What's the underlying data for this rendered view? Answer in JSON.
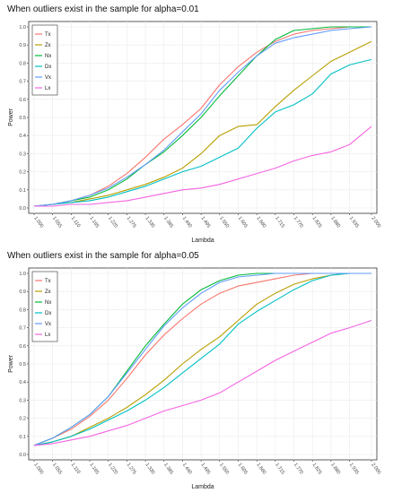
{
  "chart_data": [
    {
      "type": "line",
      "title": "When outliers exist in the sample for alpha=0.01",
      "xlabel": "Lambda",
      "ylabel": "Power",
      "x_ticks": [
        "1.000",
        "1.055",
        "1.110",
        "1.165",
        "1.220",
        "1.275",
        "1.330",
        "1.385",
        "1.440",
        "1.495",
        "1.550",
        "1.605",
        "1.660",
        "1.715",
        "1.770",
        "1.825",
        "1.880",
        "1.935",
        "2.000"
      ],
      "y_ticks": [
        "0.0",
        "0.1",
        "0.2",
        "0.3",
        "0.4",
        "0.5",
        "0.6",
        "0.7",
        "0.8",
        "0.9",
        "1.0"
      ],
      "xlim": [
        1.0,
        2.0
      ],
      "ylim": [
        0.0,
        1.0
      ],
      "grid": true,
      "legend_position": "top-left",
      "x": [
        1.0,
        1.055,
        1.11,
        1.165,
        1.22,
        1.275,
        1.33,
        1.385,
        1.44,
        1.495,
        1.55,
        1.605,
        1.66,
        1.715,
        1.77,
        1.825,
        1.88,
        1.935,
        2.0
      ],
      "series": [
        {
          "name": "Tx",
          "color": "#F8766D",
          "values": [
            0.01,
            0.02,
            0.04,
            0.07,
            0.12,
            0.19,
            0.28,
            0.38,
            0.46,
            0.55,
            0.68,
            0.78,
            0.86,
            0.92,
            0.96,
            0.98,
            0.99,
            1.0,
            1.0
          ]
        },
        {
          "name": "Zx",
          "color": "#B79F00",
          "values": [
            0.01,
            0.02,
            0.03,
            0.05,
            0.07,
            0.1,
            0.13,
            0.17,
            0.22,
            0.3,
            0.4,
            0.45,
            0.46,
            0.56,
            0.65,
            0.73,
            0.81,
            0.86,
            0.92
          ]
        },
        {
          "name": "Nx",
          "color": "#00BA38",
          "values": [
            0.01,
            0.02,
            0.04,
            0.06,
            0.1,
            0.16,
            0.24,
            0.31,
            0.4,
            0.5,
            0.62,
            0.73,
            0.84,
            0.93,
            0.98,
            0.99,
            1.0,
            1.0,
            1.0
          ]
        },
        {
          "name": "Dx",
          "color": "#00BFC4",
          "values": [
            0.01,
            0.02,
            0.03,
            0.04,
            0.06,
            0.09,
            0.12,
            0.16,
            0.2,
            0.23,
            0.28,
            0.33,
            0.44,
            0.53,
            0.57,
            0.63,
            0.74,
            0.79,
            0.82
          ]
        },
        {
          "name": "Vx",
          "color": "#619CFF",
          "values": [
            0.01,
            0.02,
            0.04,
            0.07,
            0.11,
            0.17,
            0.24,
            0.32,
            0.42,
            0.52,
            0.65,
            0.75,
            0.84,
            0.91,
            0.94,
            0.96,
            0.98,
            0.99,
            1.0
          ]
        },
        {
          "name": "Lx",
          "color": "#F564E3",
          "values": [
            0.01,
            0.01,
            0.02,
            0.02,
            0.03,
            0.04,
            0.06,
            0.08,
            0.1,
            0.11,
            0.13,
            0.16,
            0.19,
            0.22,
            0.26,
            0.29,
            0.31,
            0.35,
            0.45
          ]
        }
      ]
    },
    {
      "type": "line",
      "title": "When outliers exist in the sample for alpha=0.05",
      "xlabel": "Lambda",
      "ylabel": "Power",
      "x_ticks": [
        "1.000",
        "1.055",
        "1.110",
        "1.165",
        "1.220",
        "1.275",
        "1.330",
        "1.385",
        "1.440",
        "1.495",
        "1.550",
        "1.605",
        "1.660",
        "1.715",
        "1.770",
        "1.825",
        "1.880",
        "1.935",
        "2.000"
      ],
      "y_ticks": [
        "0.0",
        "0.1",
        "0.2",
        "0.3",
        "0.4",
        "0.5",
        "0.6",
        "0.7",
        "0.8",
        "0.9",
        "1.0"
      ],
      "xlim": [
        1.0,
        2.0
      ],
      "ylim": [
        0.0,
        1.0
      ],
      "grid": true,
      "legend_position": "top-left",
      "x": [
        1.0,
        1.055,
        1.11,
        1.165,
        1.22,
        1.275,
        1.33,
        1.385,
        1.44,
        1.495,
        1.55,
        1.605,
        1.66,
        1.715,
        1.77,
        1.825,
        1.88,
        1.935,
        2.0
      ],
      "series": [
        {
          "name": "Tx",
          "color": "#F8766D",
          "values": [
            0.05,
            0.09,
            0.14,
            0.21,
            0.3,
            0.42,
            0.55,
            0.66,
            0.75,
            0.83,
            0.89,
            0.93,
            0.95,
            0.97,
            0.99,
            1.0,
            1.0,
            1.0,
            1.0
          ]
        },
        {
          "name": "Zx",
          "color": "#B79F00",
          "values": [
            0.05,
            0.07,
            0.1,
            0.15,
            0.2,
            0.26,
            0.33,
            0.41,
            0.5,
            0.58,
            0.65,
            0.74,
            0.83,
            0.89,
            0.94,
            0.97,
            0.99,
            1.0,
            1.0
          ]
        },
        {
          "name": "Nx",
          "color": "#00BA38",
          "values": [
            0.05,
            0.09,
            0.15,
            0.22,
            0.32,
            0.46,
            0.6,
            0.72,
            0.83,
            0.91,
            0.96,
            0.99,
            1.0,
            1.0,
            1.0,
            1.0,
            1.0,
            1.0,
            1.0
          ]
        },
        {
          "name": "Dx",
          "color": "#00BFC4",
          "values": [
            0.05,
            0.07,
            0.1,
            0.14,
            0.19,
            0.24,
            0.3,
            0.37,
            0.45,
            0.53,
            0.61,
            0.72,
            0.79,
            0.85,
            0.91,
            0.96,
            0.99,
            1.0,
            1.0
          ]
        },
        {
          "name": "Vx",
          "color": "#619CFF",
          "values": [
            0.05,
            0.09,
            0.15,
            0.22,
            0.32,
            0.45,
            0.58,
            0.71,
            0.81,
            0.89,
            0.95,
            0.98,
            0.99,
            1.0,
            1.0,
            1.0,
            1.0,
            1.0,
            1.0
          ]
        },
        {
          "name": "Lx",
          "color": "#F564E3",
          "values": [
            0.05,
            0.06,
            0.08,
            0.1,
            0.13,
            0.16,
            0.2,
            0.24,
            0.27,
            0.3,
            0.34,
            0.4,
            0.46,
            0.52,
            0.57,
            0.62,
            0.67,
            0.7,
            0.74
          ]
        }
      ]
    }
  ]
}
